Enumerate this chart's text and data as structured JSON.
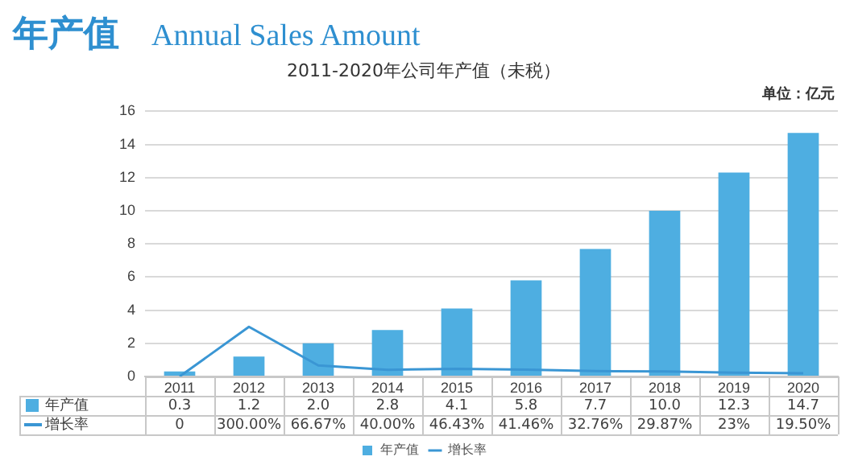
{
  "chart_data": {
    "type": "bar",
    "title": "2011-2020年公司年产值（未税）",
    "annotations": [
      "年产值",
      "Annual Sales Amount",
      "单位：亿元"
    ],
    "categories": [
      "2011",
      "2012",
      "2013",
      "2014",
      "2015",
      "2016",
      "2017",
      "2018",
      "2019",
      "2020"
    ],
    "series": [
      {
        "name": "年产值",
        "color": "#4eaee1",
        "values": [
          0.3,
          1.2,
          2.0,
          2.8,
          4.1,
          5.8,
          7.7,
          10.0,
          12.3,
          14.7
        ],
        "value_labels": [
          "0.3",
          "1.2",
          "2.0",
          "2.8",
          "4.1",
          "5.8",
          "7.7",
          "10.0",
          "12.3",
          "14.7"
        ]
      },
      {
        "name": "增长率",
        "type": "line",
        "color": "#3a96d4",
        "values": [
          0,
          3.0,
          0.6667,
          0.4,
          0.4643,
          0.4146,
          0.3276,
          0.2987,
          0.23,
          0.195
        ],
        "value_labels": [
          "0",
          "300.00%",
          "66.67%",
          "40.00%",
          "46.43%",
          "41.46%",
          "32.76%",
          "29.87%",
          "23%",
          "19.50%"
        ]
      }
    ],
    "ylim": [
      0,
      16
    ],
    "yticks": [
      0,
      2,
      4,
      6,
      8,
      10,
      12,
      14,
      16
    ],
    "grid": "y",
    "legend": "bottom",
    "marker": "none"
  }
}
